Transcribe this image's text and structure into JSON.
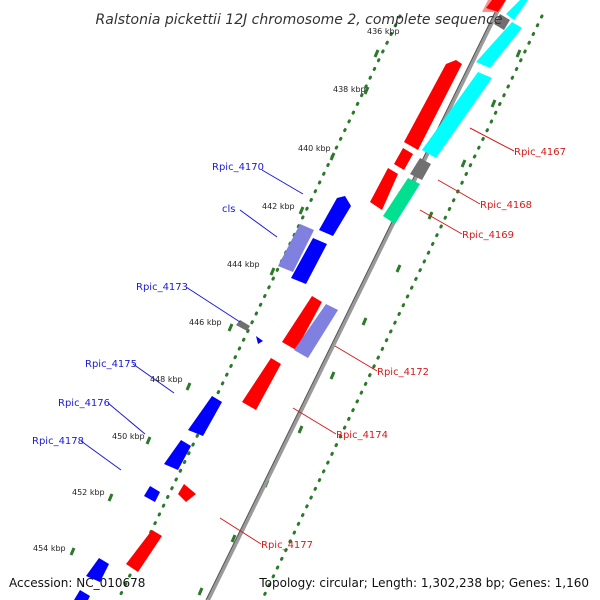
{
  "title": "Ralstonia pickettii 12J chromosome 2, complete sequence",
  "accession_text": "Accession: NC_010678",
  "summary_text": "Topology: circular; Length: 1,302,238 bp; Genes: 1,160",
  "colors": {
    "backbone": "#8c8c8c",
    "tick_dots": "#2a7a2a",
    "forward_label": "#1a1ad6",
    "reverse_label": "#d61a1a",
    "red": "#ff0000",
    "blue": "#0000ff",
    "cyan": "#00ffff",
    "gray": "#707070",
    "lavender": "#8080e0",
    "green": "#00e090",
    "salmon": "#ff9090"
  },
  "ticks": [
    {
      "label": "436 kbp"
    },
    {
      "label": "438 kbp"
    },
    {
      "label": "440 kbp"
    },
    {
      "label": "442 kbp"
    },
    {
      "label": "444 kbp"
    },
    {
      "label": "446 kbp"
    },
    {
      "label": "448 kbp"
    },
    {
      "label": "450 kbp"
    },
    {
      "label": "452 kbp"
    },
    {
      "label": "454 kbp"
    }
  ],
  "labels": {
    "forward": [
      {
        "text": "Rpic_4170"
      },
      {
        "text": "cls"
      },
      {
        "text": "Rpic_4173"
      },
      {
        "text": "Rpic_4175"
      },
      {
        "text": "Rpic_4176"
      },
      {
        "text": "Rpic_4178"
      }
    ],
    "reverse": [
      {
        "text": "Rpic_4167"
      },
      {
        "text": "Rpic_4168"
      },
      {
        "text": "Rpic_4169"
      },
      {
        "text": "Rpic_4172"
      },
      {
        "text": "Rpic_4174"
      },
      {
        "text": "Rpic_4177"
      }
    ]
  }
}
